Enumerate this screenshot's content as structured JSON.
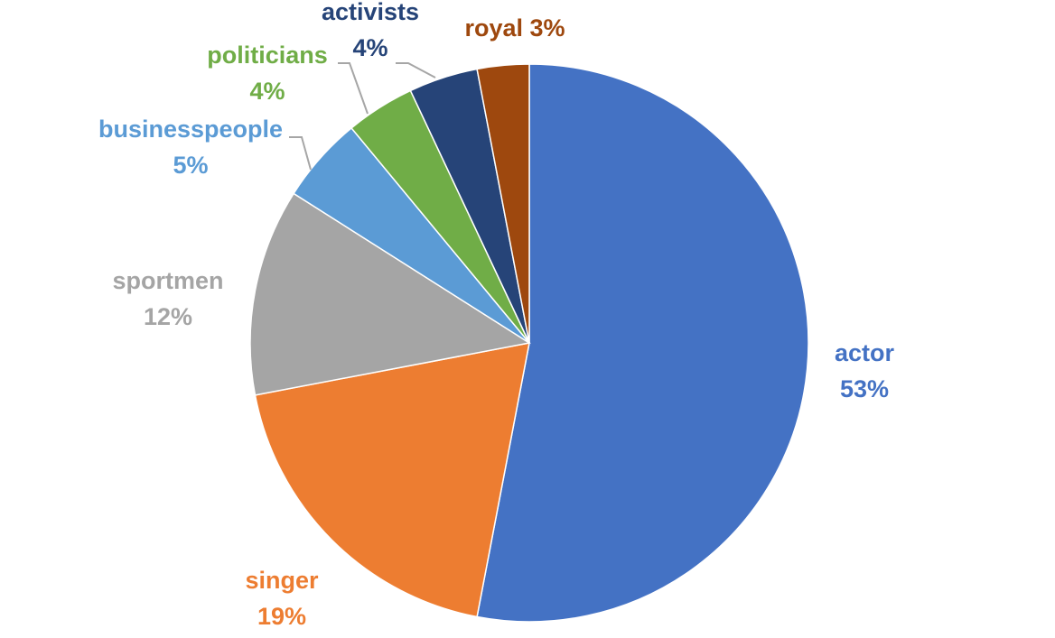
{
  "chart_data": {
    "type": "pie",
    "title": "",
    "start_angle_deg": 0,
    "direction": "clockwise",
    "series": [
      {
        "slices": [
          {
            "name": "actor",
            "value": 53,
            "label": "53%",
            "color": "#4472C4"
          },
          {
            "name": "singer",
            "value": 19,
            "label": "19%",
            "color": "#ED7D31"
          },
          {
            "name": "sportmen",
            "value": 12,
            "label": "12%",
            "color": "#A5A5A5"
          },
          {
            "name": "businesspeople",
            "value": 5,
            "label": "5%",
            "color": "#5B9BD5"
          },
          {
            "name": "politicians",
            "value": 4,
            "label": "4%",
            "color": "#70AD47"
          },
          {
            "name": "activists",
            "value": 4,
            "label": "4%",
            "color": "#264478"
          },
          {
            "name": "royal",
            "value": 3,
            "label": "3%",
            "color": "#9E480E"
          }
        ]
      }
    ]
  }
}
